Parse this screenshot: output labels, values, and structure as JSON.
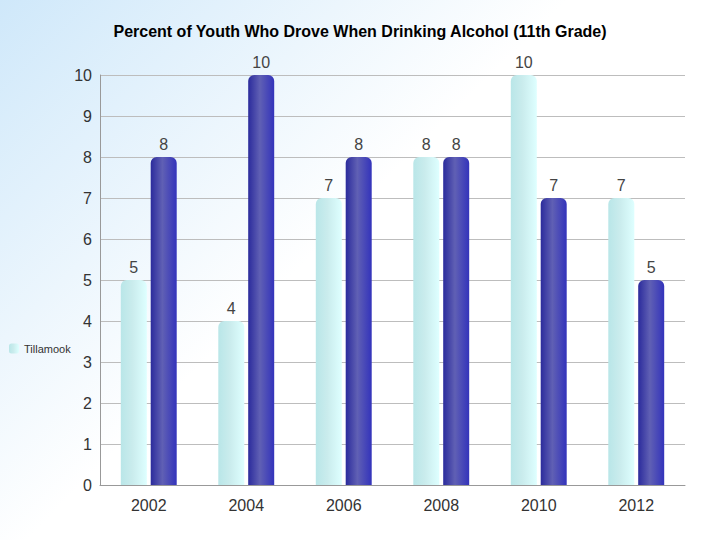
{
  "chart_data": {
    "type": "bar",
    "title": "Percent of Youth Who Drove When Drinking Alcohol (11th Grade)",
    "categories": [
      "2002",
      "2004",
      "2006",
      "2008",
      "2010",
      "2012"
    ],
    "series": [
      {
        "name": "Tillamook",
        "color": "#b9e6e8",
        "values": [
          5,
          4,
          7,
          8,
          10,
          7
        ]
      },
      {
        "color": "#2b2b9c",
        "values": [
          8,
          10,
          8,
          8,
          7,
          5
        ]
      }
    ],
    "ylim": [
      0,
      10
    ],
    "yticks": [
      0,
      1,
      2,
      3,
      4,
      5,
      6,
      7,
      8,
      9,
      10
    ],
    "grid": true,
    "legend": "left",
    "data_labels": true
  }
}
